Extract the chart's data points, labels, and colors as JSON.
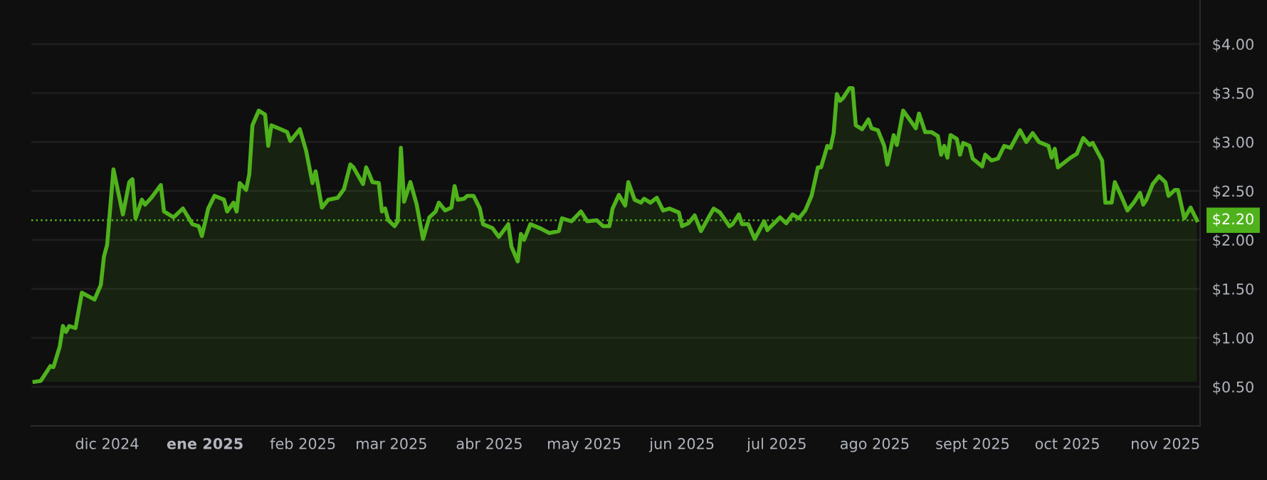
{
  "chart_data": {
    "type": "area",
    "x": [
      "2024-11-08",
      "2024-11-10",
      "2024-11-13",
      "2024-11-14",
      "2024-11-16",
      "2024-11-17",
      "2024-11-18",
      "2024-11-19",
      "2024-11-21",
      "2024-11-23",
      "2024-11-27",
      "2024-11-29",
      "2024-11-30",
      "2024-12-01",
      "2024-12-03",
      "2024-12-06",
      "2024-12-08",
      "2024-12-09",
      "2024-12-10",
      "2024-12-12",
      "2024-12-13",
      "2024-12-15",
      "2024-12-18",
      "2024-12-19",
      "2024-12-22",
      "2024-12-25",
      "2024-12-28",
      "2024-12-30",
      "2024-12-31",
      "2025-01-02",
      "2025-01-04",
      "2025-01-07",
      "2025-01-08",
      "2025-01-10",
      "2025-01-11",
      "2025-01-12",
      "2025-01-14",
      "2025-01-15",
      "2025-01-16",
      "2025-01-18",
      "2025-01-20",
      "2025-01-21",
      "2025-01-22",
      "2025-01-25",
      "2025-01-27",
      "2025-01-28",
      "2025-01-30",
      "2025-01-31",
      "2025-02-02",
      "2025-02-04",
      "2025-02-05",
      "2025-02-07",
      "2025-02-09",
      "2025-02-12",
      "2025-02-14",
      "2025-02-16",
      "2025-02-17",
      "2025-02-20",
      "2025-02-21",
      "2025-02-22",
      "2025-02-23",
      "2025-02-25",
      "2025-02-26",
      "2025-02-27",
      "2025-02-28",
      "2025-03-02",
      "2025-03-03",
      "2025-03-04",
      "2025-03-05",
      "2025-03-07",
      "2025-03-09",
      "2025-03-11",
      "2025-03-13",
      "2025-03-15",
      "2025-03-16",
      "2025-03-18",
      "2025-03-20",
      "2025-03-21",
      "2025-03-22",
      "2025-03-24",
      "2025-03-25",
      "2025-03-27",
      "2025-03-29",
      "2025-03-30",
      "2025-04-02",
      "2025-04-04",
      "2025-04-07",
      "2025-04-08",
      "2025-04-10",
      "2025-04-11",
      "2025-04-12",
      "2025-04-14",
      "2025-04-17",
      "2025-04-20",
      "2025-04-23",
      "2025-04-24",
      "2025-04-27",
      "2025-04-30",
      "2025-05-02",
      "2025-05-05",
      "2025-05-07",
      "2025-05-09",
      "2025-05-10",
      "2025-05-12",
      "2025-05-14",
      "2025-05-15",
      "2025-05-17",
      "2025-05-19",
      "2025-05-20",
      "2025-05-22",
      "2025-05-24",
      "2025-05-26",
      "2025-05-28",
      "2025-05-31",
      "2025-06-01",
      "2025-06-03",
      "2025-06-05",
      "2025-06-07",
      "2025-06-11",
      "2025-06-13",
      "2025-06-16",
      "2025-06-17",
      "2025-06-19",
      "2025-06-20",
      "2025-06-22",
      "2025-06-24",
      "2025-06-27",
      "2025-06-28",
      "2025-07-02",
      "2025-07-04",
      "2025-07-06",
      "2025-07-08",
      "2025-07-10",
      "2025-07-12",
      "2025-07-14",
      "2025-07-15",
      "2025-07-17",
      "2025-07-18",
      "2025-07-19",
      "2025-07-20",
      "2025-07-21",
      "2025-07-22",
      "2025-07-24",
      "2025-07-25",
      "2025-07-26",
      "2025-07-28",
      "2025-07-30",
      "2025-07-31",
      "2025-08-02",
      "2025-08-04",
      "2025-08-05",
      "2025-08-07",
      "2025-08-08",
      "2025-08-10",
      "2025-08-12",
      "2025-08-14",
      "2025-08-15",
      "2025-08-17",
      "2025-08-19",
      "2025-08-21",
      "2025-08-22",
      "2025-08-23",
      "2025-08-24",
      "2025-08-25",
      "2025-08-27",
      "2025-08-28",
      "2025-08-29",
      "2025-08-31",
      "2025-09-01",
      "2025-09-04",
      "2025-09-05",
      "2025-09-07",
      "2025-09-09",
      "2025-09-11",
      "2025-09-13",
      "2025-09-16",
      "2025-09-18",
      "2025-09-20",
      "2025-09-22",
      "2025-09-25",
      "2025-09-26",
      "2025-09-27",
      "2025-09-28",
      "2025-10-02",
      "2025-10-04",
      "2025-10-06",
      "2025-10-08",
      "2025-10-09",
      "2025-10-11",
      "2025-10-12",
      "2025-10-13",
      "2025-10-15",
      "2025-10-16",
      "2025-10-18",
      "2025-10-20",
      "2025-10-22",
      "2025-10-24",
      "2025-10-25",
      "2025-10-26",
      "2025-10-28",
      "2025-10-30",
      "2025-11-01",
      "2025-11-02",
      "2025-11-04",
      "2025-11-05",
      "2025-11-07",
      "2025-11-09",
      "2025-11-11"
    ],
    "series": [
      {
        "color": "#4fb21c",
        "values": [
          0.55,
          0.56,
          0.71,
          0.7,
          0.91,
          1.12,
          1.06,
          1.12,
          1.1,
          1.46,
          1.39,
          1.54,
          1.83,
          1.95,
          2.72,
          2.26,
          2.59,
          2.62,
          2.22,
          2.41,
          2.36,
          2.43,
          2.56,
          2.29,
          2.23,
          2.32,
          2.16,
          2.14,
          2.04,
          2.32,
          2.45,
          2.41,
          2.29,
          2.38,
          2.29,
          2.58,
          2.51,
          2.67,
          3.17,
          3.32,
          3.28,
          2.96,
          3.17,
          3.13,
          3.1,
          3.01,
          3.09,
          3.13,
          2.91,
          2.58,
          2.7,
          2.33,
          2.41,
          2.43,
          2.52,
          2.77,
          2.74,
          2.57,
          2.74,
          2.67,
          2.59,
          2.58,
          2.29,
          2.32,
          2.2,
          2.14,
          2.19,
          2.94,
          2.39,
          2.59,
          2.36,
          2.01,
          2.23,
          2.29,
          2.38,
          2.3,
          2.33,
          2.55,
          2.41,
          2.42,
          2.45,
          2.45,
          2.32,
          2.16,
          2.12,
          2.03,
          2.16,
          1.93,
          1.78,
          2.06,
          2.0,
          2.16,
          2.12,
          2.07,
          2.09,
          2.22,
          2.19,
          2.29,
          2.19,
          2.2,
          2.14,
          2.14,
          2.32,
          2.46,
          2.35,
          2.59,
          2.41,
          2.38,
          2.42,
          2.38,
          2.43,
          2.3,
          2.32,
          2.28,
          2.14,
          2.17,
          2.25,
          2.09,
          2.32,
          2.28,
          2.14,
          2.16,
          2.26,
          2.16,
          2.16,
          2.01,
          2.19,
          2.1,
          2.23,
          2.17,
          2.26,
          2.22,
          2.3,
          2.45,
          2.74,
          2.74,
          2.96,
          2.94,
          3.09,
          3.49,
          3.42,
          3.45,
          3.55,
          3.55,
          3.17,
          3.13,
          3.23,
          3.14,
          3.12,
          2.96,
          2.77,
          3.07,
          2.97,
          3.32,
          3.23,
          3.14,
          3.29,
          3.1,
          3.1,
          3.06,
          2.87,
          2.96,
          2.84,
          3.07,
          3.03,
          2.87,
          2.99,
          2.96,
          2.83,
          2.75,
          2.87,
          2.81,
          2.83,
          2.96,
          2.94,
          3.12,
          3.0,
          3.09,
          3.0,
          2.96,
          2.84,
          2.93,
          2.74,
          2.84,
          2.88,
          3.04,
          2.97,
          2.99,
          2.87,
          2.81,
          2.38,
          2.38,
          2.59,
          2.45,
          2.3,
          2.38,
          2.48,
          2.36,
          2.41,
          2.57,
          2.65,
          2.59,
          2.45,
          2.51,
          2.51,
          2.22,
          2.33,
          2.2
        ]
      }
    ],
    "xlim": [
      "2024-11-07",
      "2025-11-12"
    ],
    "xticks": [
      {
        "value": "2024-12-01",
        "label": "dic 2024"
      },
      {
        "value": "2025-01-01",
        "label": "ene 2025"
      },
      {
        "value": "2025-02-01",
        "label": "feb 2025"
      },
      {
        "value": "2025-03-01",
        "label": "mar 2025"
      },
      {
        "value": "2025-04-01",
        "label": "abr 2025"
      },
      {
        "value": "2025-05-01",
        "label": "may 2025"
      },
      {
        "value": "2025-06-01",
        "label": "jun 2025"
      },
      {
        "value": "2025-07-01",
        "label": "jul 2025"
      },
      {
        "value": "2025-08-01",
        "label": "ago 2025"
      },
      {
        "value": "2025-09-01",
        "label": "sept 2025"
      },
      {
        "value": "2025-10-01",
        "label": "oct 2025"
      },
      {
        "value": "2025-11-01",
        "label": "nov 2025"
      }
    ],
    "ylim": [
      0.1,
      4.45
    ],
    "yticks": [
      {
        "value": 0.5,
        "label": "$0.50"
      },
      {
        "value": 1,
        "label": "$1.00"
      },
      {
        "value": 1.5,
        "label": "$1.50"
      },
      {
        "value": 2,
        "label": "$2.00"
      },
      {
        "value": 2.5,
        "label": "$2.50"
      },
      {
        "value": 3,
        "label": "$3.00"
      },
      {
        "value": 3.5,
        "label": "$3.50"
      },
      {
        "value": 4,
        "label": "$4.00"
      }
    ],
    "grid": "y",
    "ref_lines": [
      {
        "axis": "y",
        "value": 2.2,
        "label": "$2.20",
        "color": "#4fb21c",
        "line_style": "dotted"
      }
    ]
  }
}
